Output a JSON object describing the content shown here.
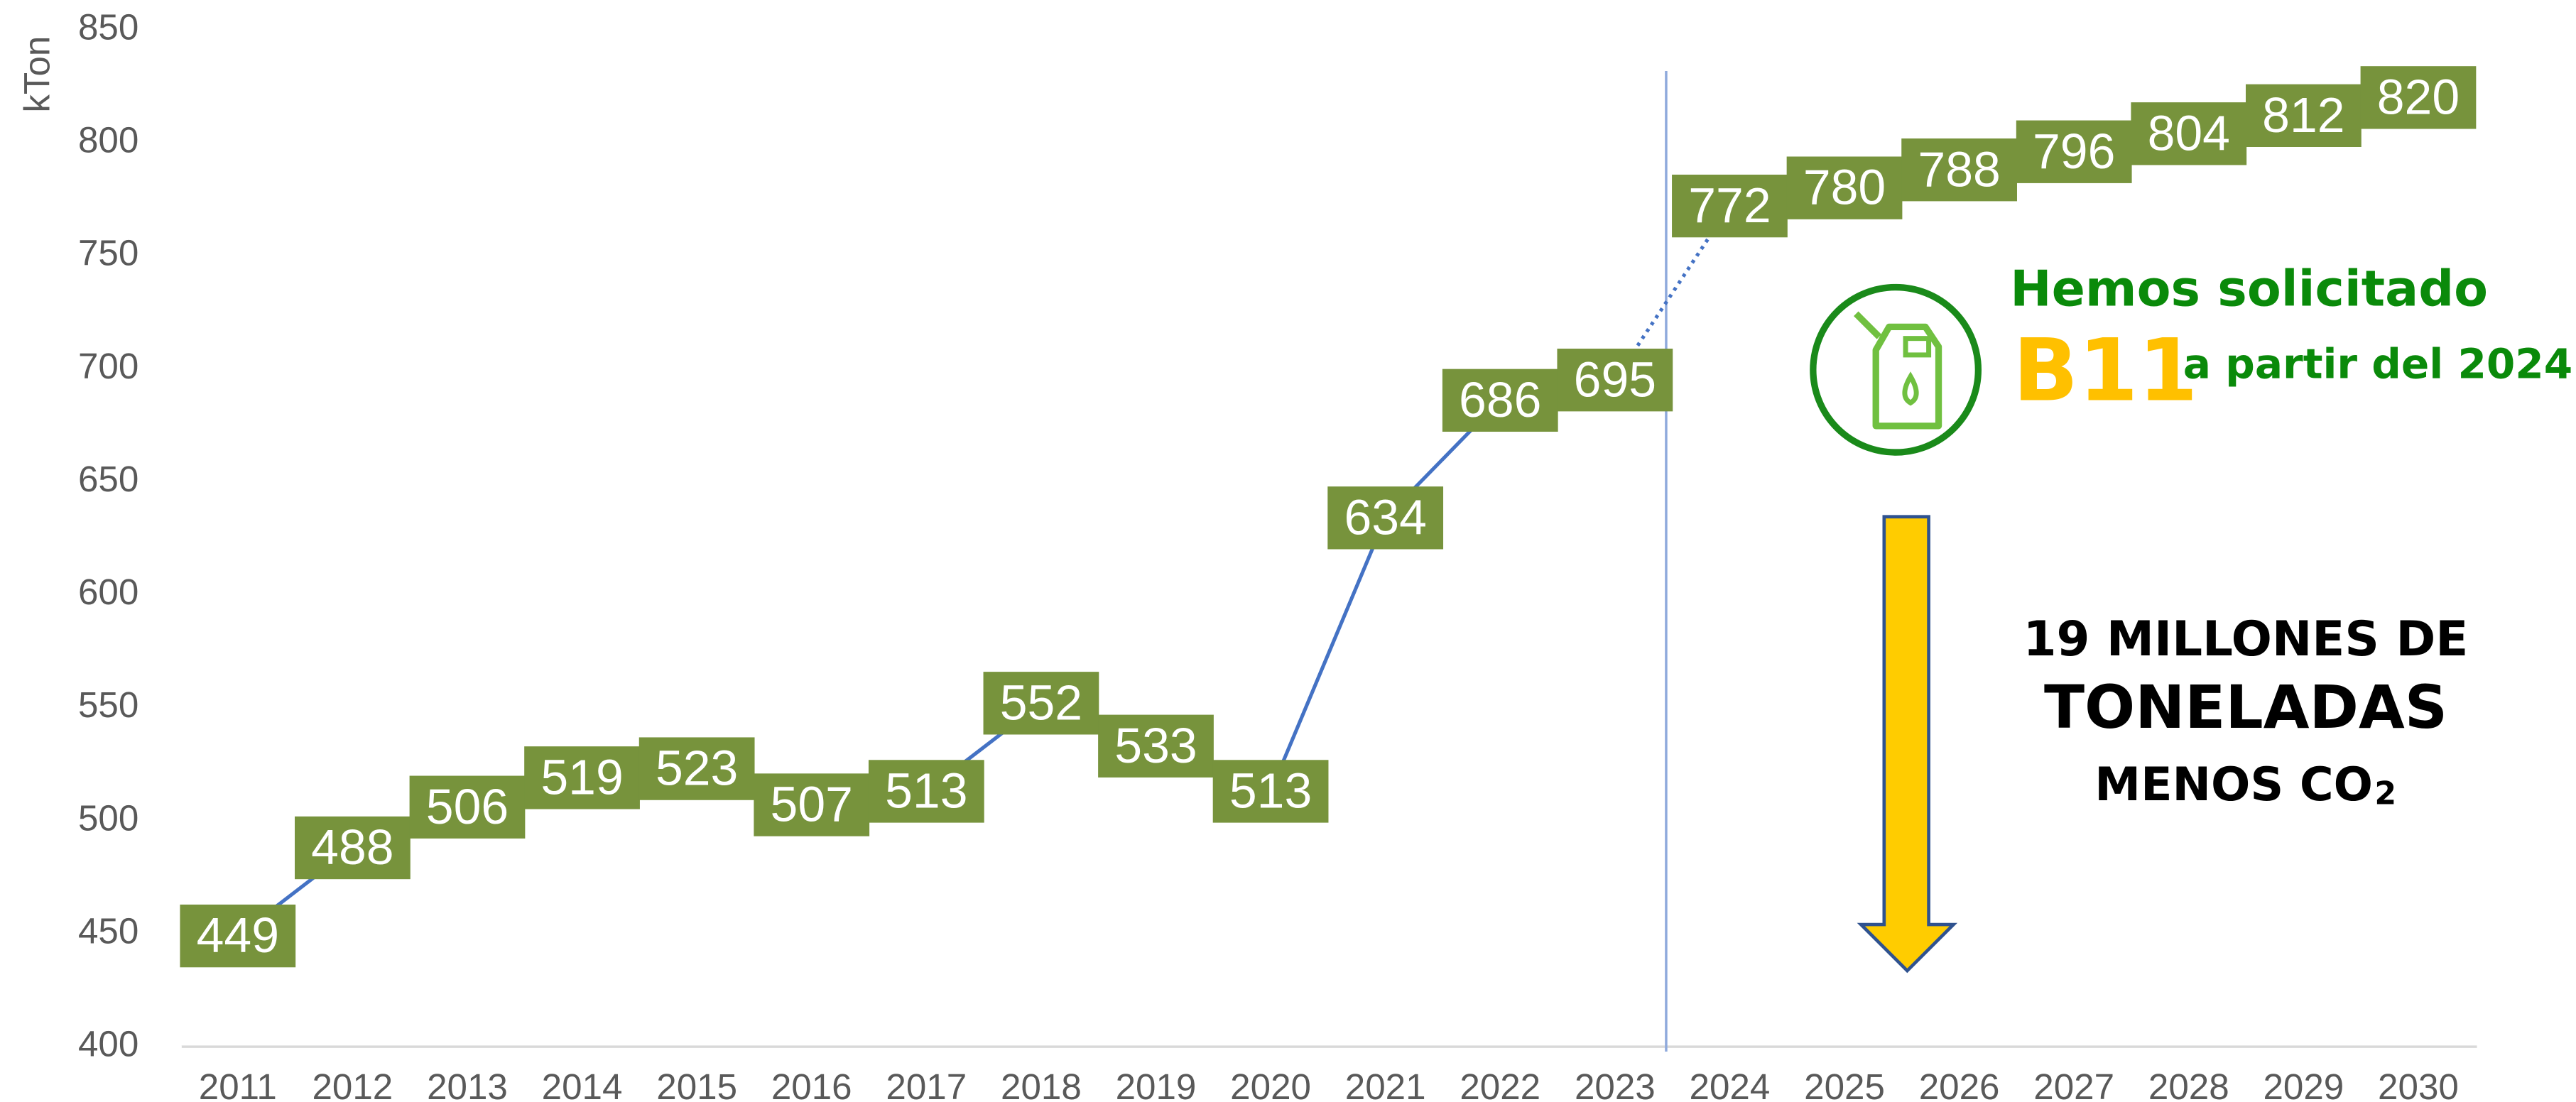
{
  "chart_data": {
    "type": "line",
    "y_label": "kTon",
    "categories": [
      "2011",
      "2012",
      "2013",
      "2014",
      "2015",
      "2016",
      "2017",
      "2018",
      "2019",
      "2020",
      "2021",
      "2022",
      "2023",
      "2024",
      "2025",
      "2026",
      "2027",
      "2028",
      "2029",
      "2030"
    ],
    "values": [
      449,
      488,
      506,
      519,
      523,
      507,
      513,
      552,
      533,
      513,
      634,
      686,
      695,
      772,
      780,
      788,
      796,
      804,
      812,
      820
    ],
    "color": "#4472c4",
    "label_color": "#77933c",
    "forecast_from": "2023",
    "ylim": [
      400,
      850
    ],
    "yticks": [
      400,
      450,
      500,
      550,
      600,
      650,
      700,
      750,
      800,
      850
    ],
    "annotations": {
      "request": "Hemos solicitado",
      "blend": "B11",
      "since": "a partir del 2024",
      "savings_1": "19 MILLONES DE",
      "savings_2": "TONELADAS",
      "savings_3": "MENOS CO",
      "savings_3_sub": "2"
    }
  }
}
